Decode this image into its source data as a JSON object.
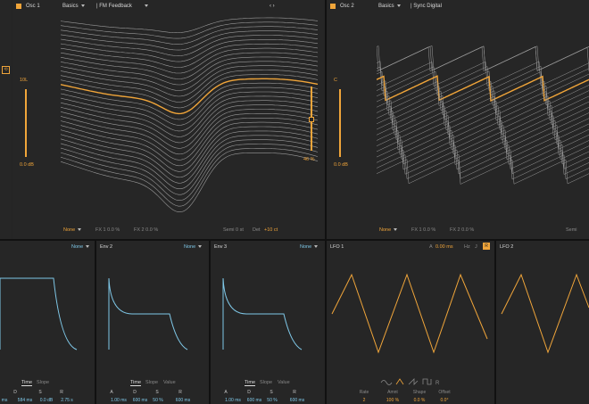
{
  "osc1": {
    "title": "Osc 1",
    "wavetable_category": "Basics",
    "wavetable_name": "FM Feedback",
    "gain_label": "10L",
    "gain_value": "0.0 dB",
    "fx_mode": "None",
    "fx1": "FX 1 0.0 %",
    "fx2": "FX 2 0.0 %",
    "semi": "Semi 0 st",
    "det_label": "Det",
    "det_value": "+10 ct"
  },
  "osc2": {
    "title": "Osc 2",
    "wavetable_category": "Basics",
    "wavetable_name": "Sync Digital",
    "pos_value": "46 %",
    "gain_label": "C",
    "gain_value": "0.0 dB",
    "fx_mode": "None",
    "fx1": "FX 1 0.0 %",
    "fx2": "FX 2 0.0 %",
    "semi": "Semi"
  },
  "env1": {
    "mode": "None",
    "tabs": [
      "Time",
      "Slope"
    ],
    "params": [
      {
        "label": "D",
        "value": "584 ms"
      },
      {
        "label": "S",
        "value": "0.0 dB"
      },
      {
        "label": "R",
        "value": "2.75 s"
      }
    ],
    "cut_value": "ms"
  },
  "env2": {
    "title": "Env 2",
    "mode": "None",
    "tabs": [
      "Time",
      "Slope",
      "Value"
    ],
    "params": [
      {
        "label": "A",
        "value": "1.00 ms"
      },
      {
        "label": "D",
        "value": "600 ms"
      },
      {
        "label": "S",
        "value": "50 %"
      },
      {
        "label": "R",
        "value": "600 ms"
      }
    ]
  },
  "env3": {
    "title": "Env 3",
    "mode": "None",
    "tabs": [
      "Time",
      "Slope",
      "Value"
    ],
    "params": [
      {
        "label": "A",
        "value": "1.00 ms"
      },
      {
        "label": "D",
        "value": "600 ms"
      },
      {
        "label": "S",
        "value": "50 %"
      },
      {
        "label": "R",
        "value": "600 ms"
      }
    ]
  },
  "lfo1": {
    "title": "LFO 1",
    "attack_label": "A",
    "attack_value": "0.00 ms",
    "hz": "Hz",
    "sync_icon": "J",
    "retrig_icon": "R",
    "params": [
      {
        "label": "Rate",
        "value": "2"
      },
      {
        "label": "Amnt",
        "value": "100 %"
      },
      {
        "label": "Shape",
        "value": "0.0 %"
      },
      {
        "label": "Offset",
        "value": "0.0°"
      }
    ]
  },
  "lfo2": {
    "title": "LFO 2"
  },
  "colors": {
    "accent": "#f0a53a",
    "envelope": "#7fc8e8",
    "wave": "#9a9a9a"
  }
}
